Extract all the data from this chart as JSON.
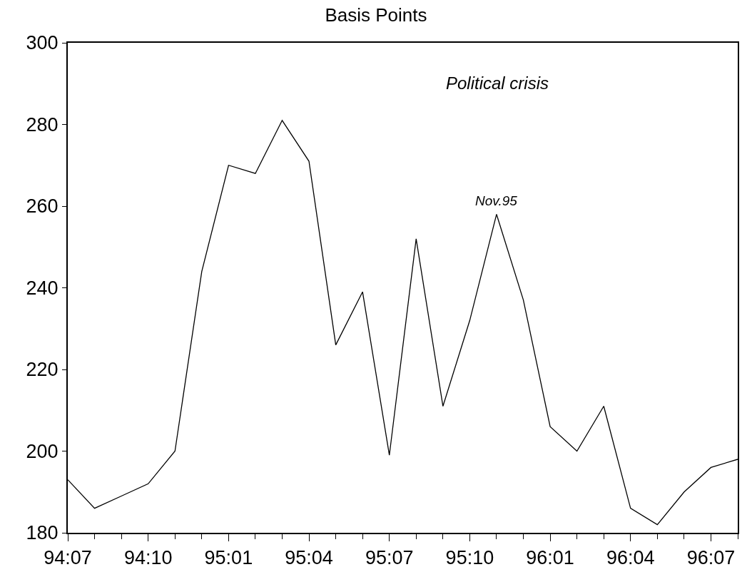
{
  "chart_data": {
    "type": "line",
    "title": "Basis Points",
    "categories": [
      "94:07",
      null,
      null,
      "94:10",
      null,
      null,
      "95:01",
      null,
      null,
      "95:04",
      null,
      null,
      "95:07",
      null,
      null,
      "95:10",
      null,
      null,
      "96:01",
      null,
      null,
      "96:04",
      null,
      null,
      "96:07",
      null
    ],
    "series": [
      {
        "color": "#000000",
        "values": [
          193,
          186,
          189,
          192,
          200,
          244,
          270,
          268,
          281,
          271,
          226,
          239,
          199,
          252,
          211,
          232,
          258,
          237,
          206,
          200,
          211,
          186,
          182,
          190,
          196,
          198
        ]
      }
    ],
    "ylim": [
      180,
      300
    ],
    "yticks": [
      180,
      200,
      220,
      240,
      260,
      280,
      300
    ],
    "annotations": [
      "Political crisis",
      {
        "text": "Nov.95",
        "y": 258
      }
    ],
    "grid": false,
    "marker": "none",
    "line_style": "solid"
  }
}
